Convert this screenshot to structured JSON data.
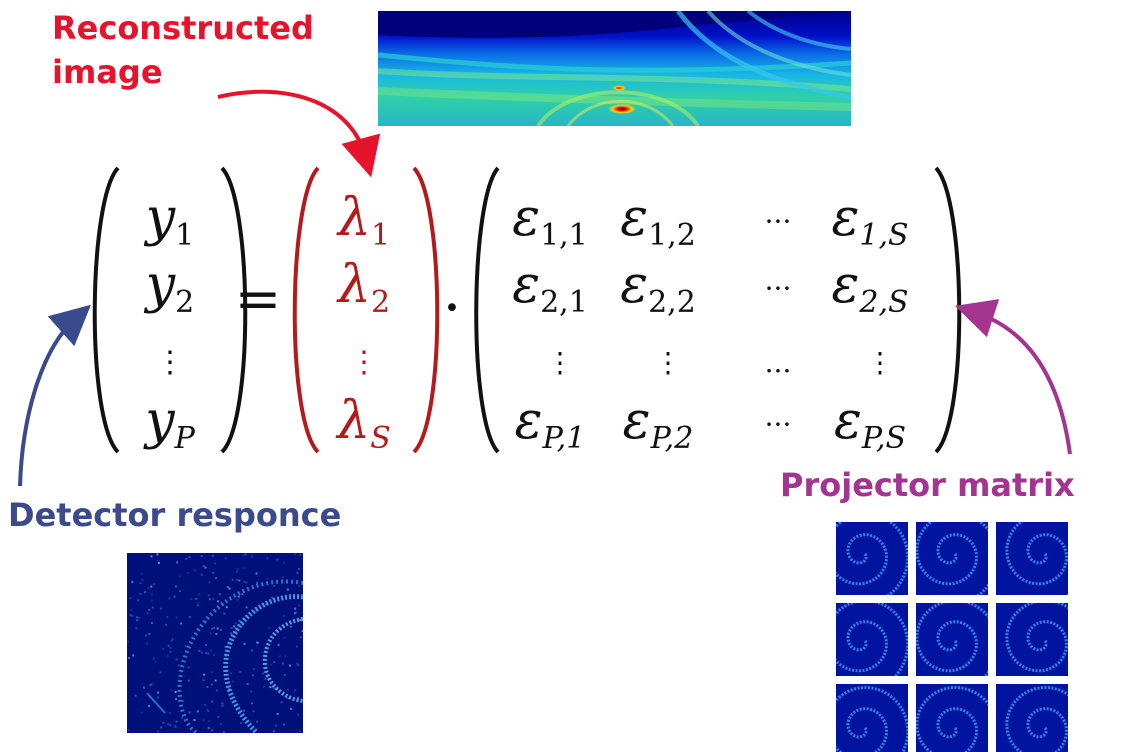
{
  "colors": {
    "reconstructed": "#e5132b",
    "detector": "#3b4a8c",
    "projector": "#a3348f",
    "lambda": "#b51a1a",
    "text": "#111111"
  },
  "labels": {
    "reconstructed_line1": "Reconstructed",
    "reconstructed_line2": "image",
    "detector": "Detector responce",
    "projector": "Projector matrix"
  },
  "equation": {
    "y_vector": {
      "base": "y",
      "rows": [
        {
          "sub": "1"
        },
        {
          "sub": "2"
        },
        {
          "dots": "⋮"
        },
        {
          "sub": "P"
        }
      ]
    },
    "equals": "=",
    "lambda_vector": {
      "base": "λ",
      "rows": [
        {
          "sub": "1"
        },
        {
          "sub": "2"
        },
        {
          "dots": "⋮"
        },
        {
          "sub": "S"
        }
      ]
    },
    "dot": "·",
    "epsilon_matrix": {
      "base": "ε",
      "rows": [
        [
          "1,1",
          "1,2",
          "···",
          "1,S"
        ],
        [
          "2,1",
          "2,2",
          "···",
          "2,S"
        ],
        [
          "⋮",
          "⋮",
          "...",
          "⋮"
        ],
        [
          "P,1",
          "P,2",
          "···",
          "P,S"
        ]
      ]
    }
  },
  "images": {
    "reconstructed": "heatmap-reconstruction",
    "detector": "detector-ring-pattern",
    "projector": "spiral-tile-grid"
  },
  "projector_grid": {
    "rows": 3,
    "cols": 3
  }
}
